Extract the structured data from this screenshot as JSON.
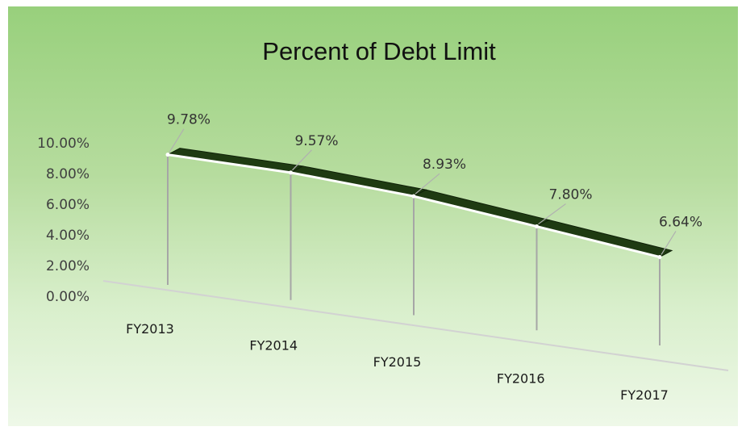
{
  "chart_data": {
    "type": "line",
    "title": "Percent of Debt Limit",
    "xlabel": "",
    "ylabel": "",
    "categories": [
      "FY2013",
      "FY2014",
      "FY2015",
      "FY2016",
      "FY2017"
    ],
    "series": [
      {
        "values": [
          9.78,
          9.57,
          8.93,
          7.8,
          6.64
        ],
        "data_labels": [
          "9.78%",
          "9.57%",
          "8.93%",
          "7.80%",
          "6.64%"
        ],
        "color": "#1f3b12"
      }
    ],
    "y_tick_labels": [
      "10.00%",
      "8.00%",
      "6.00%",
      "4.00%",
      "2.00%",
      "0.00%"
    ],
    "y_ticks": [
      10,
      8,
      6,
      4,
      2,
      0
    ],
    "ylim": [
      0,
      10
    ],
    "grid": false,
    "legend": "none",
    "style": "3d-line"
  },
  "colors": {
    "background_top": "#98d07c",
    "background_bottom": "#eef8e8",
    "ribbon": "#1f3b12",
    "drop_line": "#a6a6a6"
  }
}
